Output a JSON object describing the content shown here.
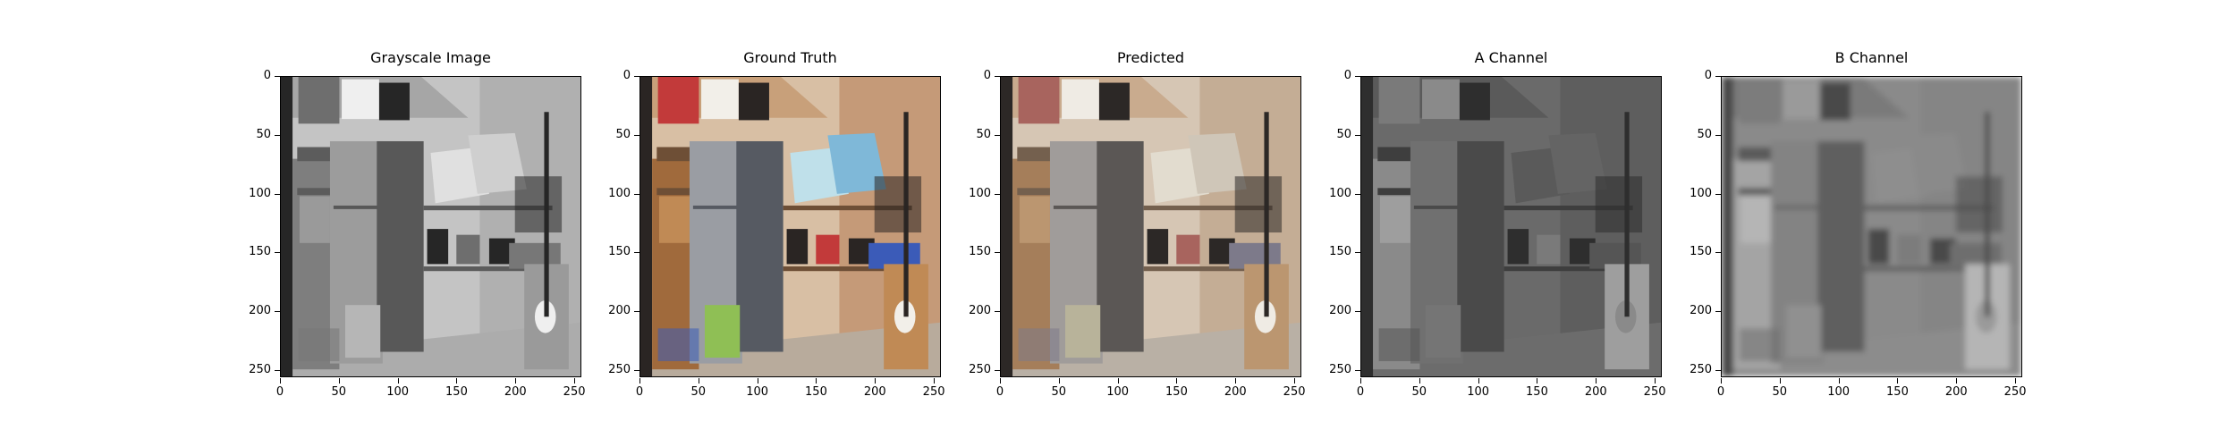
{
  "chart_data": {
    "type": "image",
    "panels": [
      {
        "id": "gray",
        "title": "Grayscale Image",
        "mode": "gray"
      },
      {
        "id": "truth",
        "title": "Ground Truth",
        "mode": "color"
      },
      {
        "id": "pred",
        "title": "Predicted",
        "mode": "faded"
      },
      {
        "id": "achan",
        "title": "A Channel",
        "mode": "dark"
      },
      {
        "id": "bchan",
        "title": "B Channel",
        "mode": "blur"
      }
    ],
    "xticks": [
      0,
      50,
      100,
      150,
      200,
      250
    ],
    "yticks": [
      0,
      50,
      100,
      150,
      200,
      250
    ],
    "xlim": [
      0,
      256
    ],
    "ylim": [
      256,
      0
    ]
  }
}
